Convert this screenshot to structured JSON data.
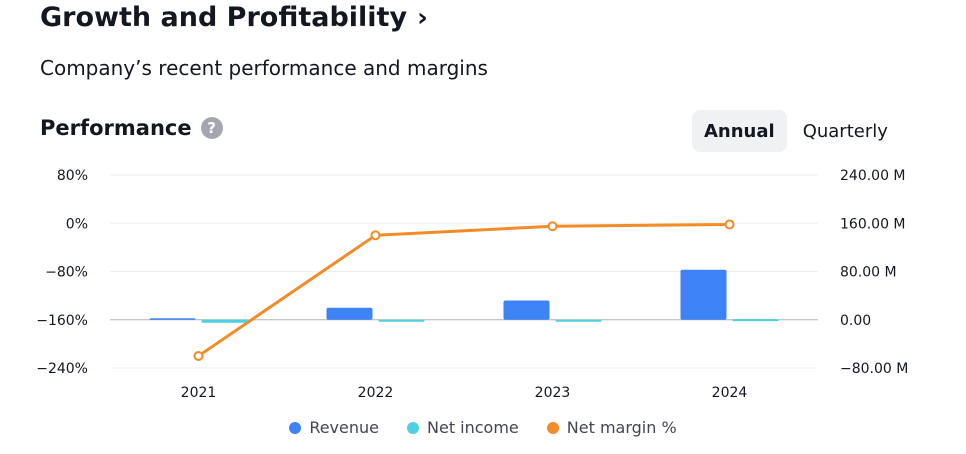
{
  "header": {
    "title": "Growth and Profitability",
    "subtitle": "Company’s recent performance and margins"
  },
  "section": {
    "title": "Performance",
    "help_symbol": "?"
  },
  "period_toggle": {
    "options": [
      "Annual",
      "Quarterly"
    ],
    "selected": "Annual"
  },
  "colors": {
    "revenue": "#3d82f6",
    "net_income": "#4dd0e1",
    "net_margin": "#f28b28",
    "grid": "#eeeeee",
    "axis": "#b2b5be"
  },
  "chart_data": {
    "type": "bar",
    "categories": [
      "2021",
      "2022",
      "2023",
      "2024"
    ],
    "series": [
      {
        "name": "Revenue",
        "axis": "right",
        "kind": "bar",
        "values": [
          2.5,
          20,
          32,
          83
        ]
      },
      {
        "name": "Net income",
        "axis": "right",
        "kind": "bar",
        "values": [
          -5,
          -3,
          -1,
          1
        ]
      },
      {
        "name": "Net margin %",
        "axis": "left",
        "kind": "line",
        "values": [
          -220,
          -20,
          -5,
          -2
        ]
      }
    ],
    "left_axis": {
      "ticks": [
        "80%",
        "0%",
        "−80%",
        "−160%",
        "−240%"
      ],
      "tick_values": [
        80,
        0,
        -80,
        -160,
        -240
      ],
      "range": [
        -240,
        80
      ]
    },
    "right_axis": {
      "ticks": [
        "240.00 M",
        "160.00 M",
        "80.00 M",
        "0.00",
        "−80.00 M"
      ],
      "tick_values": [
        240,
        160,
        80,
        0,
        -80
      ],
      "range": [
        -80,
        240
      ],
      "unit": "M"
    },
    "grid": true,
    "legend_position": "bottom"
  }
}
